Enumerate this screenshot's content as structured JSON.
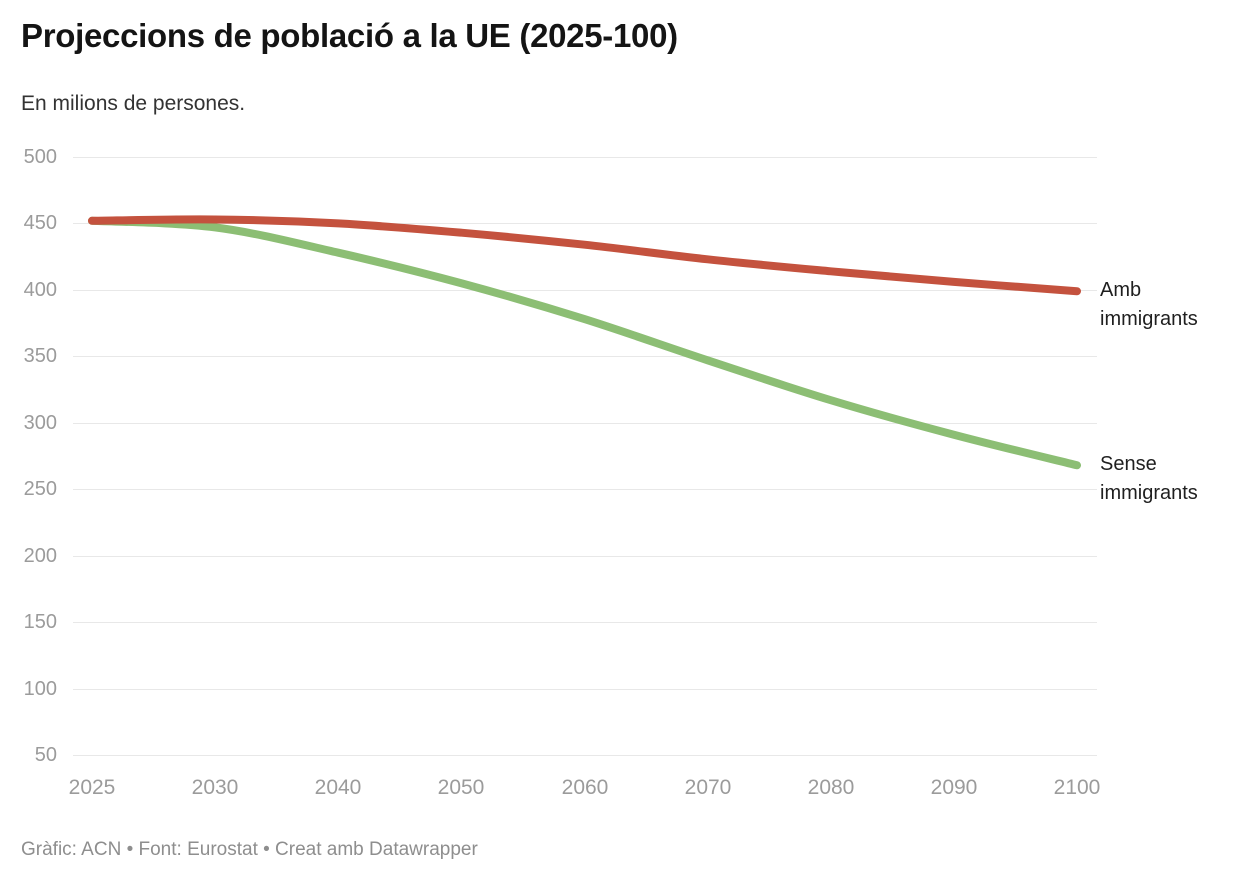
{
  "header": {
    "title": "Projeccions de població a la UE (2025-100)",
    "subtitle": "En milions de persones."
  },
  "footer": {
    "text": "Gràfic: ACN • Font: Eurostat • Creat amb Datawrapper"
  },
  "colors": {
    "amb_immigrants_line": "#c4523e",
    "sense_immigrants_line": "#8cbe74",
    "gridline": "#e8e8e8",
    "tick_label": "#9b9b9b",
    "series_label": "#1f1f1f"
  },
  "chart_data": {
    "type": "line",
    "title": "Projeccions de població a la UE (2025-100)",
    "subtitle": "En milions de persones.",
    "xlabel": "",
    "ylabel": "",
    "categories": [
      "2025",
      "2030",
      "2040",
      "2050",
      "2060",
      "2070",
      "2080",
      "2090",
      "2100"
    ],
    "series": [
      {
        "name": "Amb immigrants",
        "color": "#c4523e",
        "values": [
          452,
          453,
          450,
          443,
          434,
          423,
          414,
          406,
          399
        ]
      },
      {
        "name": "Sense immigrants",
        "color": "#8cbe74",
        "values": [
          452,
          447,
          428,
          405,
          378,
          347,
          317,
          291,
          268
        ]
      }
    ],
    "ylim": [
      50,
      500
    ],
    "yticks": [
      500,
      450,
      400,
      350,
      300,
      250,
      200,
      150,
      100,
      50
    ],
    "grid": "horizontal",
    "legend_position": "direct-labels-right",
    "line_style": "smooth, rounded caps"
  }
}
